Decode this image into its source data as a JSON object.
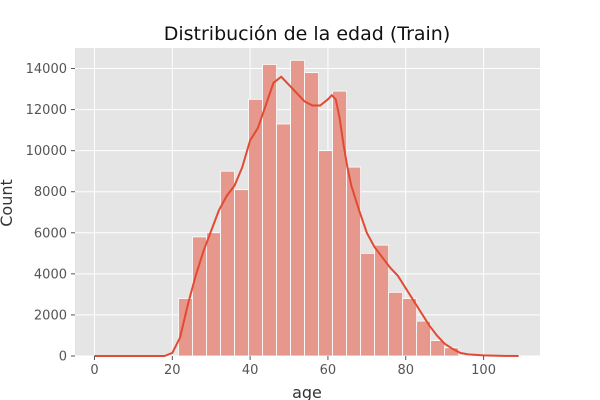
{
  "chart_data": {
    "type": "bar",
    "title": "Distribución de la edad (Train)",
    "xlabel": "age",
    "ylabel": "Count",
    "xlim": [
      -5,
      114.5
    ],
    "ylim": [
      0,
      15000
    ],
    "xticks": [
      0,
      20,
      40,
      60,
      80,
      100
    ],
    "yticks": [
      0,
      2000,
      4000,
      6000,
      8000,
      10000,
      12000,
      14000
    ],
    "grid": true,
    "bin_width": 3.6,
    "bins": [
      {
        "x0": 21.6,
        "count": 2800
      },
      {
        "x0": 25.2,
        "count": 5800
      },
      {
        "x0": 28.8,
        "count": 6000
      },
      {
        "x0": 32.4,
        "count": 9000
      },
      {
        "x0": 36.0,
        "count": 8100
      },
      {
        "x0": 39.6,
        "count": 12500
      },
      {
        "x0": 43.2,
        "count": 14200
      },
      {
        "x0": 46.8,
        "count": 11300
      },
      {
        "x0": 50.4,
        "count": 14400
      },
      {
        "x0": 54.0,
        "count": 13800
      },
      {
        "x0": 57.6,
        "count": 10000
      },
      {
        "x0": 61.2,
        "count": 12900
      },
      {
        "x0": 64.8,
        "count": 9200
      },
      {
        "x0": 68.4,
        "count": 5000
      },
      {
        "x0": 72.0,
        "count": 5400
      },
      {
        "x0": 75.6,
        "count": 3100
      },
      {
        "x0": 79.2,
        "count": 2800
      },
      {
        "x0": 82.8,
        "count": 1700
      },
      {
        "x0": 86.4,
        "count": 750
      },
      {
        "x0": 90.0,
        "count": 400
      }
    ],
    "kde": {
      "x": [
        0,
        10,
        18,
        20,
        22,
        24,
        26,
        28,
        30,
        32,
        34,
        36,
        38,
        40,
        42,
        44,
        46,
        48,
        50,
        52,
        54,
        56,
        58,
        60,
        61,
        62,
        63,
        64,
        65,
        66,
        68,
        70,
        72,
        74,
        76,
        78,
        80,
        82,
        84,
        86,
        88,
        90,
        92,
        94,
        96,
        100,
        105,
        109
      ],
      "y": [
        0,
        0,
        0,
        150,
        900,
        2500,
        3900,
        5100,
        6100,
        7100,
        7800,
        8300,
        9200,
        10500,
        11100,
        12200,
        13300,
        13600,
        13200,
        12800,
        12400,
        12200,
        12200,
        12500,
        12700,
        12500,
        11600,
        10300,
        9200,
        8300,
        7100,
        6000,
        5300,
        4800,
        4300,
        3900,
        3300,
        2700,
        2100,
        1500,
        1000,
        600,
        350,
        150,
        80,
        30,
        5,
        0
      ]
    },
    "colors": {
      "bar_fill": "#E5988B",
      "bar_edge": "#ffffff",
      "kde_line": "#E24A33",
      "plot_background": "#E5E5E5",
      "grid": "#ffffff"
    }
  }
}
